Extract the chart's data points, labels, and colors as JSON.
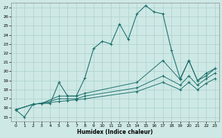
{
  "xlabel": "Humidex (Indice chaleur)",
  "bg_color": "#cde8e5",
  "grid_color": "#b0d4d0",
  "line_color": "#1a6e6a",
  "xlim": [
    -0.5,
    23.5
  ],
  "ylim": [
    14.5,
    27.5
  ],
  "xticks": [
    0,
    1,
    2,
    3,
    4,
    5,
    6,
    7,
    8,
    9,
    10,
    11,
    12,
    13,
    14,
    15,
    16,
    17,
    18,
    19,
    20,
    21,
    22,
    23
  ],
  "yticks": [
    15,
    16,
    17,
    18,
    19,
    20,
    21,
    22,
    23,
    24,
    25,
    26,
    27
  ],
  "line1_x": [
    0,
    1,
    2,
    3,
    4,
    5,
    6,
    7,
    8,
    9,
    10,
    11,
    12,
    13,
    14,
    15,
    16,
    17,
    18,
    19,
    20,
    21,
    22,
    23
  ],
  "line1_y": [
    15.8,
    15.0,
    16.4,
    16.5,
    16.5,
    18.8,
    17.3,
    17.3,
    19.3,
    22.5,
    23.3,
    23.0,
    25.2,
    23.5,
    26.3,
    27.2,
    26.5,
    26.3,
    22.3,
    19.2,
    21.2,
    19.0,
    19.5,
    20.3
  ],
  "line2_x": [
    0,
    2,
    3,
    5,
    6,
    7,
    8,
    14,
    17,
    19,
    20,
    21,
    22,
    23
  ],
  "line2_y": [
    15.8,
    16.4,
    16.5,
    17.3,
    17.3,
    17.3,
    17.6,
    18.8,
    21.2,
    19.1,
    21.2,
    19.0,
    19.8,
    20.3
  ],
  "line3_x": [
    0,
    2,
    3,
    5,
    6,
    7,
    8,
    14,
    17,
    19,
    20,
    21,
    22,
    23
  ],
  "line3_y": [
    15.8,
    16.4,
    16.5,
    17.0,
    17.0,
    17.0,
    17.3,
    18.2,
    19.5,
    18.5,
    19.5,
    18.5,
    19.2,
    19.8
  ],
  "line4_x": [
    0,
    2,
    3,
    5,
    6,
    7,
    8,
    14,
    17,
    19,
    20,
    21,
    22,
    23
  ],
  "line4_y": [
    15.8,
    16.4,
    16.5,
    16.7,
    16.8,
    16.9,
    17.0,
    17.8,
    18.8,
    18.0,
    18.8,
    18.0,
    18.7,
    19.2
  ]
}
